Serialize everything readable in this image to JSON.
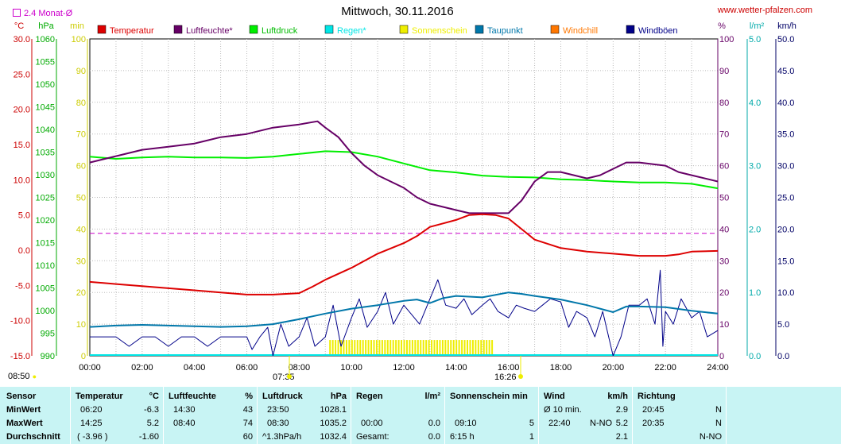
{
  "title": "Mittwoch, 30.11.2016",
  "website": "www.wetter-pfalzen.com",
  "avg_label": "2.4 Monat-Ø",
  "sun_time_left": "08:50",
  "sun_times_axis": [
    "07:35",
    "16:26"
  ],
  "chart_data": {
    "type": "line",
    "xlabel": "",
    "x_ticks": [
      "00:00",
      "02:00",
      "04:00",
      "06:00",
      "08:00",
      "10:00",
      "12:00",
      "14:00",
      "16:00",
      "18:00",
      "20:00",
      "22:00",
      "24:00"
    ],
    "axes": [
      {
        "id": "temp",
        "unit": "°C",
        "range": [
          -15,
          30
        ],
        "ticks": [
          "30.0",
          "25.0",
          "20.0",
          "15.0",
          "10.0",
          "5.0",
          "0.0",
          "-5.0",
          "-10.0",
          "-15.0"
        ],
        "color": "#cc0000"
      },
      {
        "id": "press",
        "unit": "hPa",
        "range": [
          990,
          1060
        ],
        "ticks": [
          "1060",
          "1055",
          "1050",
          "1045",
          "1040",
          "1035",
          "1030",
          "1025",
          "1020",
          "1015",
          "1010",
          "1005",
          "1000",
          "995",
          "990"
        ],
        "color": "#00aa00"
      },
      {
        "id": "sun",
        "unit": "min",
        "range": [
          0,
          100
        ],
        "ticks": [
          "100",
          "90",
          "80",
          "70",
          "60",
          "50",
          "40",
          "30",
          "20",
          "10",
          "0"
        ],
        "color": "#cccc00"
      },
      {
        "id": "hum",
        "unit": "%",
        "range": [
          0,
          100
        ],
        "ticks": [
          "100",
          "90",
          "80",
          "70",
          "60",
          "50",
          "40",
          "30",
          "20",
          "10",
          "0"
        ],
        "color": "#660066"
      },
      {
        "id": "rain",
        "unit": "l/m²",
        "range": [
          0,
          5
        ],
        "ticks": [
          "5.0",
          "4.0",
          "3.0",
          "2.0",
          "1.0",
          "0.0"
        ],
        "color": "#00aaaa"
      },
      {
        "id": "wind",
        "unit": "km/h",
        "range": [
          0,
          50
        ],
        "ticks": [
          "50.0",
          "45.0",
          "40.0",
          "35.0",
          "30.0",
          "25.0",
          "20.0",
          "15.0",
          "10.0",
          "5.0",
          "0.0"
        ],
        "color": "#000066"
      }
    ],
    "legend": [
      {
        "name": "Temperatur",
        "color": "#dd0000"
      },
      {
        "name": "Luftfeuchte*",
        "color": "#660066"
      },
      {
        "name": "Luftdruck",
        "color": "#00ee00"
      },
      {
        "name": "Regen*",
        "color": "#00e6e6"
      },
      {
        "name": "Sonnenschein",
        "color": "#eeee00"
      },
      {
        "name": "Taupunkt",
        "color": "#0077aa"
      },
      {
        "name": "Windchill",
        "color": "#ff7700"
      },
      {
        "name": "Windböen",
        "color": "#000088"
      }
    ],
    "avg_line": {
      "axis": "temp",
      "value": 2.4,
      "color": "#cc00cc"
    },
    "series": [
      {
        "name": "Temperatur",
        "axis": "temp",
        "color": "#dd0000",
        "x": [
          0,
          1,
          2,
          3,
          4,
          5,
          6,
          7,
          8,
          8.5,
          9,
          10,
          11,
          12,
          12.5,
          13,
          13.5,
          14,
          14.5,
          15,
          15.5,
          16,
          16.5,
          17,
          18,
          19,
          20,
          21,
          22,
          22.5,
          23,
          24
        ],
        "y": [
          -4.5,
          -4.8,
          -5.1,
          -5.4,
          -5.7,
          -6.0,
          -6.3,
          -6.3,
          -6.1,
          -5.2,
          -4.2,
          -2.5,
          -0.5,
          1.0,
          2.0,
          3.3,
          3.8,
          4.3,
          5.0,
          5.1,
          5.0,
          4.5,
          3.0,
          1.5,
          0.3,
          -0.2,
          -0.5,
          -0.8,
          -0.8,
          -0.6,
          -0.2,
          -0.1
        ]
      },
      {
        "name": "Luftfeuchte*",
        "axis": "hum",
        "color": "#660066",
        "x": [
          0,
          1,
          2,
          3,
          4,
          5,
          6,
          7,
          8,
          8.7,
          9,
          9.5,
          10,
          10.5,
          11,
          12,
          12.5,
          13,
          13.5,
          14,
          14.5,
          15,
          15.5,
          16,
          16.5,
          17,
          17.5,
          18,
          18.5,
          19,
          19.5,
          20,
          20.5,
          21,
          22,
          22.5,
          23,
          24
        ],
        "y": [
          61,
          63,
          65,
          66,
          67,
          69,
          70,
          72,
          73,
          74,
          72,
          69,
          64,
          60,
          57,
          53,
          50,
          48,
          47,
          46,
          45,
          45,
          45,
          45,
          49,
          55,
          58,
          58,
          57,
          56,
          57,
          59,
          61,
          61,
          60,
          58,
          57,
          55
        ]
      },
      {
        "name": "Luftdruck",
        "axis": "press",
        "color": "#00ee00",
        "x": [
          0,
          1,
          2,
          3,
          4,
          5,
          6,
          7,
          8,
          9,
          10,
          11,
          12,
          13,
          14,
          15,
          16,
          17,
          18,
          19,
          20,
          21,
          22,
          23,
          24
        ],
        "y": [
          1034.0,
          1033.5,
          1033.8,
          1034.0,
          1033.8,
          1033.8,
          1033.7,
          1034.0,
          1034.6,
          1035.2,
          1035.0,
          1034.0,
          1032.5,
          1031.0,
          1030.5,
          1029.8,
          1029.5,
          1029.4,
          1029.0,
          1028.8,
          1028.5,
          1028.3,
          1028.3,
          1028.0,
          1027.0
        ]
      },
      {
        "name": "Taupunkt",
        "axis": "temp",
        "color": "#0077aa",
        "x": [
          0,
          1,
          2,
          3,
          4,
          5,
          6,
          7,
          8,
          9,
          10,
          11,
          12,
          12.5,
          13,
          13.5,
          14,
          15,
          16,
          16.5,
          17,
          18,
          19,
          20,
          20.5,
          21,
          22,
          23,
          24
        ],
        "y": [
          -10.9,
          -10.7,
          -10.6,
          -10.7,
          -10.8,
          -10.9,
          -10.8,
          -10.5,
          -9.8,
          -9.0,
          -8.3,
          -7.8,
          -7.2,
          -7.0,
          -7.5,
          -6.8,
          -6.5,
          -6.7,
          -6.0,
          -6.2,
          -6.5,
          -7.0,
          -7.8,
          -8.8,
          -8.0,
          -8.0,
          -8.1,
          -8.6,
          -9.0
        ]
      },
      {
        "name": "Windböen",
        "axis": "wind",
        "color": "#000088",
        "x": [
          0,
          0.5,
          1,
          1.5,
          2,
          2.5,
          3,
          3.5,
          4,
          4.5,
          5,
          5.5,
          6,
          6.2,
          6.5,
          6.8,
          7,
          7.3,
          7.6,
          8,
          8.3,
          8.6,
          9,
          9.3,
          9.6,
          10,
          10.3,
          10.6,
          11,
          11.3,
          11.6,
          12,
          12.3,
          12.6,
          13,
          13.3,
          13.6,
          14,
          14.3,
          14.6,
          15,
          15.3,
          15.6,
          16,
          16.3,
          16.6,
          17,
          17.3,
          17.6,
          18,
          18.3,
          18.6,
          19,
          19.3,
          19.6,
          20,
          20.3,
          20.6,
          21,
          21.3,
          21.6,
          21.8,
          21.9,
          22,
          22.3,
          22.6,
          23,
          23.3,
          23.6,
          24
        ],
        "y": [
          3,
          3,
          3,
          1.5,
          3,
          3,
          1.5,
          3,
          3,
          1.5,
          3,
          3,
          3,
          1,
          3,
          4.5,
          0,
          5,
          1.5,
          3,
          6,
          1.5,
          3,
          8,
          1.5,
          6,
          9,
          4.5,
          7,
          10,
          5,
          8,
          6.5,
          5,
          9,
          12,
          8,
          7.5,
          9,
          6.5,
          8,
          9,
          7,
          6,
          8,
          7.5,
          7,
          8,
          9,
          8.5,
          4.5,
          7,
          6,
          3,
          7,
          0,
          3,
          8,
          8,
          9,
          5,
          13.5,
          1.5,
          7,
          5,
          9,
          6,
          7,
          3,
          4
        ]
      },
      {
        "name": "Sonnenschein",
        "axis": "sun",
        "color": "#eeee00",
        "x_range": [
          9.15,
          15.45
        ],
        "value": 5
      }
    ]
  },
  "table": {
    "rows": [
      "Sensor",
      "MinWert",
      "MaxWert",
      "Durchschnitt"
    ],
    "temperature": {
      "header": "Temperatur",
      "unit": "°C",
      "min_time": "06:20",
      "min": "-6.3",
      "max_time": "14:25",
      "max": "5.2",
      "avg_label": "( -3.96 )",
      "avg": "-1.60"
    },
    "humidity": {
      "header": "Luftfeuchte",
      "unit": "%",
      "min_time": "14:30",
      "min": "43",
      "max_time": "08:40",
      "max": "74",
      "avg": "60"
    },
    "pressure": {
      "header": "Luftdruck",
      "unit": "hPa",
      "min_time": "23:50",
      "min": "1028.1",
      "max_time": "08:30",
      "max": "1035.2",
      "trend": "^1.3hPa/h",
      "avg": "1032.4"
    },
    "rain": {
      "header": "Regen",
      "unit": "l/m²",
      "max_time": "00:00",
      "max": "0.0",
      "total_label": "Gesamt:",
      "total": "0.0"
    },
    "sunshine": {
      "header": "Sonnenschein min",
      "max_time": "09:10",
      "max": "5",
      "total_label": "6:15 h",
      "total": "1"
    },
    "wind": {
      "header": "Wind",
      "unit": "km/h",
      "min_label": "Ø 10 min.",
      "min": "2.9",
      "max_time": "22:40",
      "max_dir": "N-NO",
      "max": "5.2",
      "avg": "2.1"
    },
    "direction": {
      "header": "Richtung",
      "min_time": "20:45",
      "min": "N",
      "max_time": "20:35",
      "max": "N",
      "avg": "N-NO"
    }
  }
}
